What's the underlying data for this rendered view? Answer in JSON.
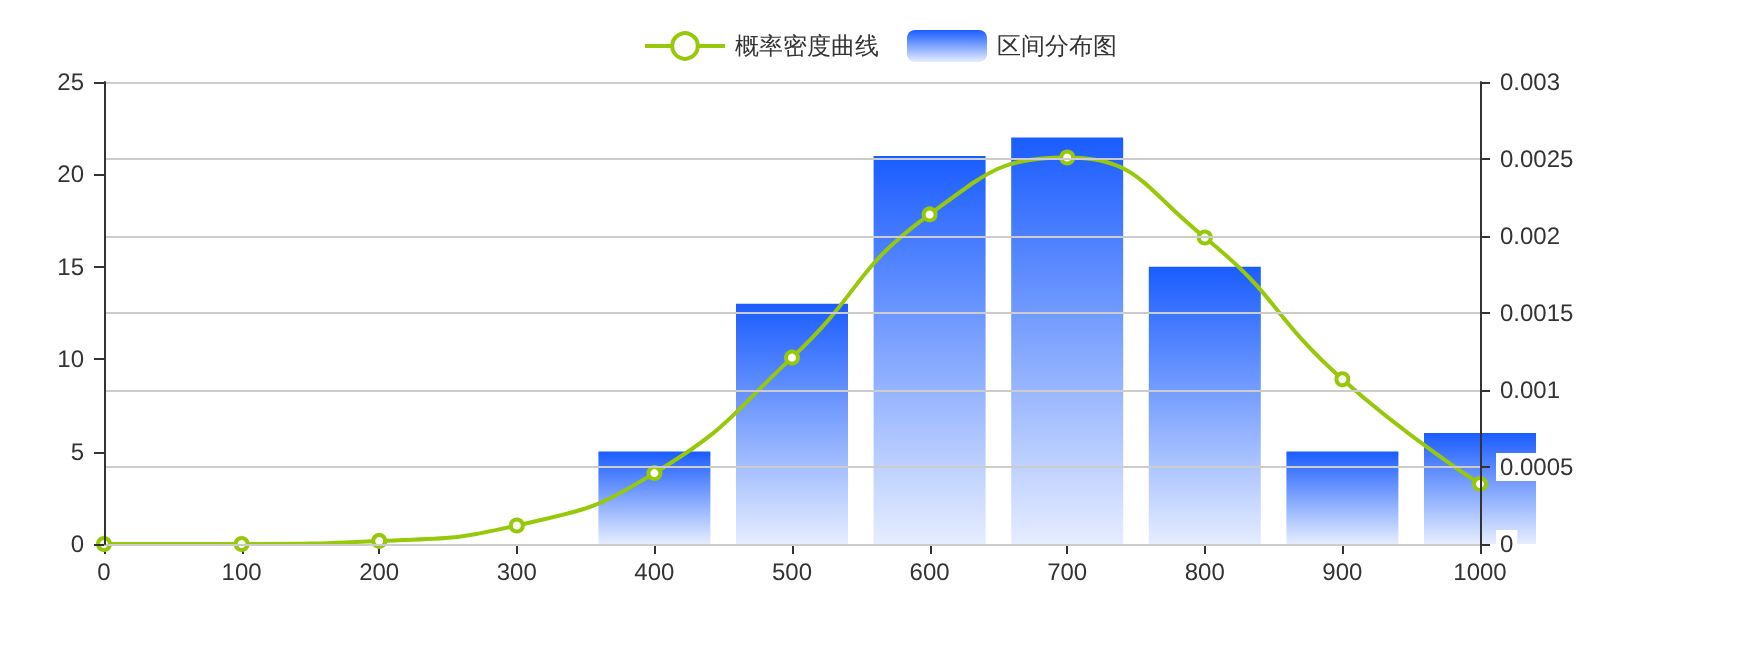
{
  "chart_data": {
    "type": "bar",
    "x": [
      400,
      500,
      600,
      700,
      800,
      900,
      1000
    ],
    "series": [
      {
        "name": "概率密度曲线",
        "type": "line",
        "axis": "y2",
        "color": "#97c80a",
        "x": [
          0,
          100,
          200,
          300,
          400,
          500,
          600,
          700,
          800,
          900,
          1000
        ],
        "values": [
          0,
          0,
          2e-05,
          0.00012,
          0.00046,
          0.00121,
          0.00214,
          0.00251,
          0.00199,
          0.00107,
          0.00039
        ]
      },
      {
        "name": "区间分布图",
        "color": "#1a5cff",
        "values": [
          5,
          13,
          21,
          22,
          15,
          5,
          6
        ]
      }
    ],
    "xlim": [
      0,
      1000
    ],
    "xticks": [
      0,
      100,
      200,
      300,
      400,
      500,
      600,
      700,
      800,
      900,
      1000
    ],
    "ylim": [
      0,
      25
    ],
    "yticks": [
      0,
      5,
      10,
      15,
      20,
      25
    ],
    "y2lim": [
      0,
      0.003
    ],
    "y2ticks": [
      0,
      0.0005,
      0.001,
      0.0015,
      0.002,
      0.0025,
      0.003
    ],
    "grid": "y",
    "legend": "top",
    "marker": "circle",
    "line_style": "solid"
  }
}
